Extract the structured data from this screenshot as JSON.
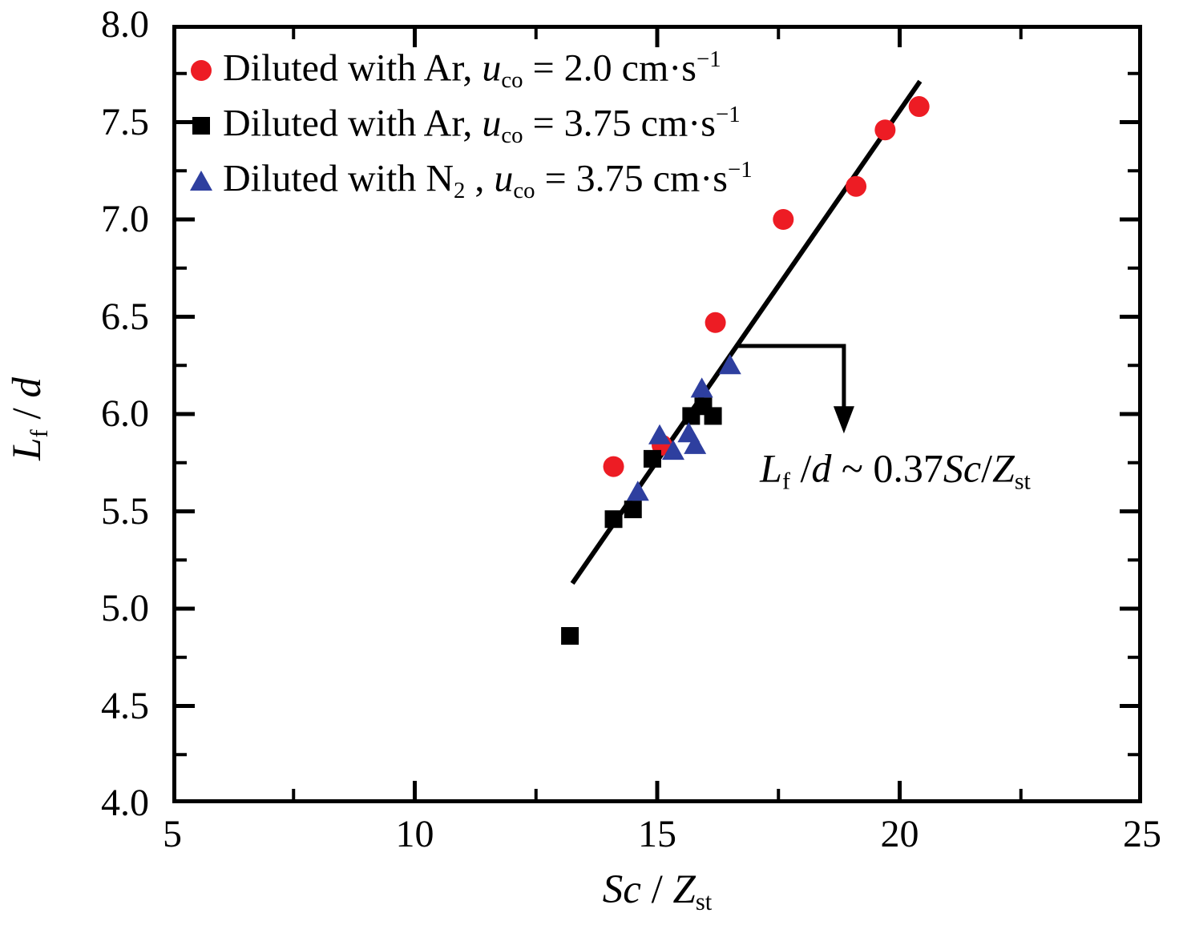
{
  "figure": {
    "background": "#ffffff",
    "frame_color": "#000000",
    "axes": {
      "x": {
        "label_text": "Sc / Zst",
        "label_tokens": [
          {
            "t": "Sc",
            "s": "i"
          },
          {
            "t": " / "
          },
          {
            "t": "Z",
            "s": "i"
          },
          {
            "t": "st",
            "s": "sub"
          }
        ]
      },
      "y": {
        "label_text": "Lf / d",
        "label_tokens": [
          {
            "t": "L",
            "s": "i"
          },
          {
            "t": "f",
            "s": "sub"
          },
          {
            "t": " / "
          },
          {
            "t": "d",
            "s": "i"
          }
        ]
      }
    },
    "legend": {
      "position": "top-left-inside",
      "entries": [
        {
          "tokens": [
            {
              "t": "Diluted with Ar, "
            },
            {
              "t": "u",
              "s": "i"
            },
            {
              "t": "co",
              "s": "sub"
            },
            {
              "t": " = 2.0 cm·s"
            },
            {
              "t": "−1",
              "s": "sup"
            }
          ]
        },
        {
          "tokens": [
            {
              "t": "Diluted with Ar, "
            },
            {
              "t": "u",
              "s": "i"
            },
            {
              "t": "co",
              "s": "sub"
            },
            {
              "t": " = 3.75 cm·s"
            },
            {
              "t": "−1",
              "s": "sup"
            }
          ]
        },
        {
          "tokens": [
            {
              "t": "Diluted with N"
            },
            {
              "t": "2",
              "s": "sub"
            },
            {
              "t": " , "
            },
            {
              "t": "u",
              "s": "i"
            },
            {
              "t": "co",
              "s": "sub"
            },
            {
              "t": " = 3.75 cm·s"
            },
            {
              "t": "−1",
              "s": "sup"
            }
          ]
        }
      ]
    },
    "annotation": {
      "text": "Lf /d ~ 0.37Sc/Zst",
      "tokens": [
        {
          "t": "L",
          "s": "i"
        },
        {
          "t": "f",
          "s": "sub"
        },
        {
          "t": " /"
        },
        {
          "t": "d",
          "s": "i"
        },
        {
          "t": " ~ 0.37"
        },
        {
          "t": "Sc",
          "s": "i"
        },
        {
          "t": "/"
        },
        {
          "t": "Z",
          "s": "i"
        },
        {
          "t": "st",
          "s": "sub"
        }
      ]
    }
  },
  "chart_data": {
    "type": "scatter",
    "title": "",
    "xlabel": "Sc / Zst",
    "ylabel": "Lf / d",
    "xlim": [
      5,
      25
    ],
    "ylim": [
      4.0,
      8.0
    ],
    "grid": false,
    "legend_position": "top-left-inside",
    "x_ticks": [
      {
        "v": 5,
        "label": "5"
      },
      {
        "v": 10,
        "label": "10"
      },
      {
        "v": 15,
        "label": "15"
      },
      {
        "v": 20,
        "label": "20"
      },
      {
        "v": 25,
        "label": "25"
      }
    ],
    "x_minor_ticks": [
      7.5,
      12.5,
      17.5,
      22.5
    ],
    "y_ticks": [
      {
        "v": 4.0,
        "label": "4.0"
      },
      {
        "v": 4.5,
        "label": "4.5"
      },
      {
        "v": 5.0,
        "label": "5.0"
      },
      {
        "v": 5.5,
        "label": "5.5"
      },
      {
        "v": 6.0,
        "label": "6.0"
      },
      {
        "v": 6.5,
        "label": "6.5"
      },
      {
        "v": 7.0,
        "label": "7.0"
      },
      {
        "v": 7.5,
        "label": "7.5"
      },
      {
        "v": 8.0,
        "label": "8.0"
      }
    ],
    "y_minor_ticks": [
      4.25,
      4.75,
      5.25,
      5.75,
      6.25,
      6.75,
      7.25,
      7.75
    ],
    "series": [
      {
        "name": "Diluted with Ar, u_co = 2.0 cm·s^-1",
        "marker": "circle",
        "color": "#ed1c24",
        "points": [
          [
            14.1,
            5.73
          ],
          [
            15.1,
            5.84
          ],
          [
            16.2,
            6.47
          ],
          [
            17.6,
            7.0
          ],
          [
            19.1,
            7.17
          ],
          [
            19.7,
            7.46
          ],
          [
            20.4,
            7.58
          ]
        ]
      },
      {
        "name": "Diluted with Ar, u_co = 3.75 cm·s^-1",
        "marker": "square",
        "color": "#000000",
        "points": [
          [
            13.2,
            4.86
          ],
          [
            14.1,
            5.46
          ],
          [
            14.5,
            5.51
          ],
          [
            14.9,
            5.77
          ],
          [
            15.7,
            5.99
          ],
          [
            15.95,
            6.04
          ],
          [
            16.15,
            5.99
          ]
        ]
      },
      {
        "name": "Diluted with N2, u_co = 3.75 cm·s^-1",
        "marker": "triangle",
        "color": "#2e3f9f",
        "points": [
          [
            14.6,
            5.6
          ],
          [
            15.05,
            5.89
          ],
          [
            15.33,
            5.81
          ],
          [
            15.65,
            5.9
          ],
          [
            15.78,
            5.84
          ],
          [
            15.92,
            6.13
          ],
          [
            16.5,
            6.25
          ]
        ]
      }
    ],
    "fit_line": {
      "from": [
        13.25,
        5.13
      ],
      "to": [
        20.42,
        7.71
      ],
      "color": "#000000",
      "label": "Lf/d ~ 0.37 Sc/Zst",
      "slope_relation": 0.37
    },
    "annotation_arrow": {
      "from": [
        16.66,
        6.35
      ],
      "elbow": [
        18.85,
        6.35
      ],
      "tip": [
        18.85,
        5.9
      ],
      "color": "#000000"
    }
  }
}
